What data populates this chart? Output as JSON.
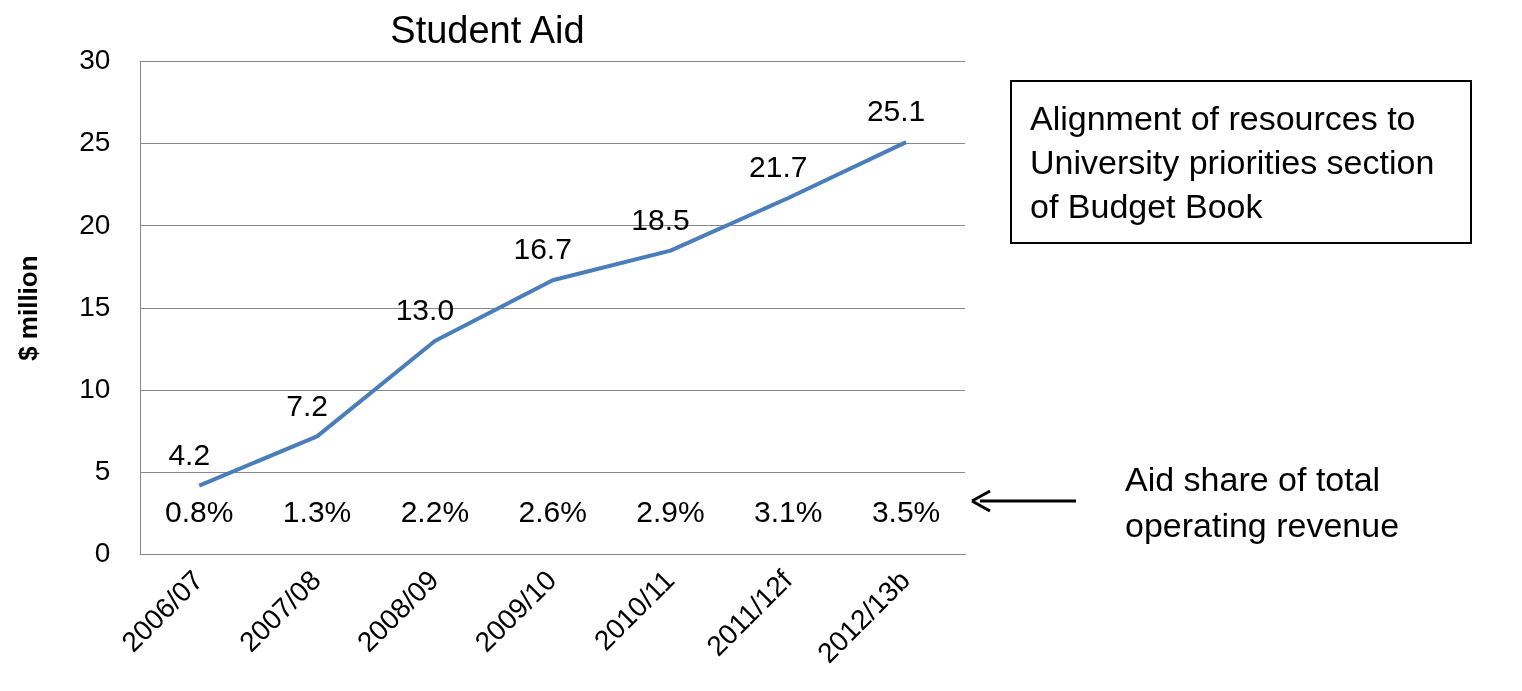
{
  "chart_data": {
    "type": "line",
    "title": "Student Aid",
    "ylabel": "$ million",
    "categories": [
      "2006/07",
      "2007/08",
      "2008/09",
      "2009/10",
      "2010/11",
      "2011/12f",
      "2012/13b"
    ],
    "series": [
      {
        "color": "#4a7ebb",
        "values": [
          4.2,
          7.2,
          13.0,
          16.7,
          18.5,
          21.7,
          25.1
        ],
        "value_labels": [
          "4.2",
          "7.2",
          "13.0",
          "16.7",
          "18.5",
          "21.7",
          "25.1"
        ]
      }
    ],
    "ylim": [
      0,
      30
    ],
    "yticks": [
      0,
      5,
      10,
      15,
      20,
      25,
      30
    ],
    "grid": "y",
    "legend": false,
    "annotations": [
      "0.8%",
      "1.3%",
      "2.2%",
      "2.6%",
      "2.9%",
      "3.1%",
      "3.5%",
      "Alignment  of resources to University priorities section of Budget  Book",
      "Aid share of total operating revenue"
    ]
  }
}
